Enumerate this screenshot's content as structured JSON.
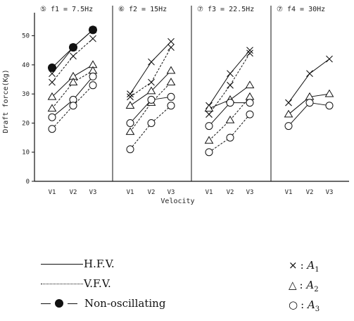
{
  "chart_data": {
    "type": "line",
    "ylabel": "Draft force(Kg)",
    "xlabel": "Velocity",
    "yticks": [
      "0",
      "10",
      "20",
      "30",
      "40",
      "50"
    ],
    "ylim": [
      0,
      55
    ],
    "categories": [
      "V1",
      "V2",
      "V3"
    ],
    "panels": [
      {
        "title": "⑤ f1 = 7.5Hz",
        "series": [
          {
            "name": "A1",
            "marker": "x",
            "style": "H.F.V.",
            "values": [
              37,
              46,
              52
            ]
          },
          {
            "name": "A1",
            "marker": "x",
            "style": "V.F.V.",
            "values": [
              34,
              43,
              49
            ]
          },
          {
            "name": "A2",
            "marker": "triangle",
            "style": "H.F.V.",
            "values": [
              29,
              36,
              40
            ]
          },
          {
            "name": "A2",
            "marker": "triangle",
            "style": "V.F.V.",
            "values": [
              25,
              34,
              38
            ]
          },
          {
            "name": "A3",
            "marker": "circle",
            "style": "H.F.V.",
            "values": [
              22,
              28,
              36
            ]
          },
          {
            "name": "A3",
            "marker": "circle",
            "style": "V.F.V.",
            "values": [
              18,
              26,
              33
            ]
          },
          {
            "name": "Non-oscillating",
            "marker": "filled",
            "style": "Non-oscillating",
            "values": [
              39,
              46,
              52
            ]
          }
        ]
      },
      {
        "title": "⑥ f2 = 15Hz",
        "series": [
          {
            "name": "A1",
            "marker": "x",
            "style": "H.F.V.",
            "values": [
              30,
              41,
              48
            ]
          },
          {
            "name": "A1",
            "marker": "x",
            "style": "V.F.V.",
            "values": [
              29,
              34,
              46
            ]
          },
          {
            "name": "A2",
            "marker": "triangle",
            "style": "H.F.V.",
            "values": [
              26,
              31,
              38
            ]
          },
          {
            "name": "A2",
            "marker": "triangle",
            "style": "V.F.V.",
            "values": [
              17,
              27,
              34
            ]
          },
          {
            "name": "A3",
            "marker": "circle",
            "style": "H.F.V.",
            "values": [
              20,
              28,
              29
            ]
          },
          {
            "name": "A3",
            "marker": "circle",
            "style": "V.F.V.",
            "values": [
              11,
              20,
              26
            ]
          }
        ]
      },
      {
        "title": "⑦ f3 = 22.5Hz",
        "series": [
          {
            "name": "A1",
            "marker": "x",
            "style": "H.F.V.",
            "values": [
              26,
              37,
              45
            ]
          },
          {
            "name": "A1",
            "marker": "x",
            "style": "V.F.V.",
            "values": [
              23,
              33,
              44
            ]
          },
          {
            "name": "A2",
            "marker": "triangle",
            "style": "H.F.V.",
            "values": [
              25,
              28,
              33
            ]
          },
          {
            "name": "A2",
            "marker": "triangle",
            "style": "V.F.V.",
            "values": [
              14,
              21,
              29
            ]
          },
          {
            "name": "A3",
            "marker": "circle",
            "style": "H.F.V.",
            "values": [
              19,
              27,
              27
            ]
          },
          {
            "name": "A3",
            "marker": "circle",
            "style": "V.F.V.",
            "values": [
              10,
              15,
              23
            ]
          }
        ]
      },
      {
        "title": "⑦ f4 = 30Hz",
        "series": [
          {
            "name": "A1",
            "marker": "x",
            "style": "H.F.V.",
            "values": [
              27,
              37,
              42
            ]
          },
          {
            "name": "A2",
            "marker": "triangle",
            "style": "H.F.V.",
            "values": [
              23,
              29,
              30
            ]
          },
          {
            "name": "A3",
            "marker": "circle",
            "style": "H.F.V.",
            "values": [
              19,
              27,
              26
            ]
          }
        ]
      }
    ]
  },
  "legend": {
    "hfv": "H.F.V.",
    "vfv": "V.F.V.",
    "nonosc": "Non-oscillating",
    "a1_sym": "×",
    "a1_label": "A",
    "a1_sub": "1",
    "a2_sym": "△",
    "a2_label": "A",
    "a2_sub": "2",
    "a3_sym": "○",
    "a3_label": "A",
    "a3_sub": "3",
    "colon": ":"
  }
}
